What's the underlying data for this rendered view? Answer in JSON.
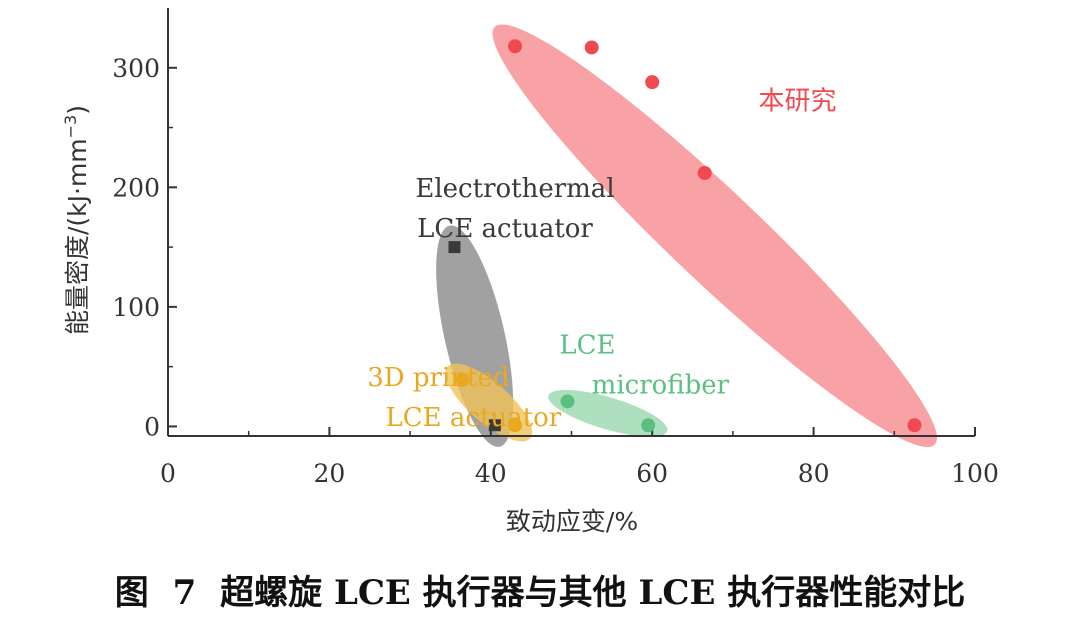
{
  "chart_data": {
    "type": "scatter",
    "xlabel": "致动应变/%",
    "ylabel": "能量密度/(kJ·mm",
    "ylabel_sup": "−3",
    "ylabel_close": ")",
    "xlim": [
      0,
      100
    ],
    "ylim": [
      -8,
      350
    ],
    "xticks": [
      0,
      20,
      40,
      60,
      80,
      100
    ],
    "yticks": [
      0,
      100,
      200,
      300
    ],
    "grid": false,
    "series": [
      {
        "name": "本研究",
        "color": "#f0494f",
        "fill": "#f88b8e",
        "marker": "circle",
        "label_lines": [
          "本研究"
        ],
        "points": [
          [
            43,
            318
          ],
          [
            52.5,
            317
          ],
          [
            60,
            288
          ],
          [
            66.5,
            212
          ],
          [
            92.5,
            1
          ]
        ]
      },
      {
        "name": "Electrothermal LCE actuator",
        "color": "#3a3a3a",
        "fill": "#8a8a8a",
        "marker": "square",
        "label_lines": [
          "Electrothermal",
          "LCE actuator"
        ],
        "points": [
          [
            35.5,
            150
          ],
          [
            40.5,
            1
          ]
        ]
      },
      {
        "name": "3D printed LCE actuator",
        "color": "#e8a820",
        "fill": "#f0c25a",
        "marker": "circle",
        "label_lines": [
          "3D printed",
          "LCE actuator"
        ],
        "points": [
          [
            36.5,
            39
          ],
          [
            43,
            1
          ]
        ]
      },
      {
        "name": "LCE microfiber",
        "color": "#5cbf82",
        "fill": "#9ad8b0",
        "marker": "circle",
        "label_lines": [
          "LCE",
          "microfiber"
        ],
        "points": [
          [
            49.5,
            21
          ],
          [
            59.5,
            1
          ]
        ]
      }
    ]
  },
  "caption": {
    "fig_label": "图",
    "fig_number": "7",
    "text": "超螺旋 LCE 执行器与其他 LCE 执行器性能对比"
  }
}
